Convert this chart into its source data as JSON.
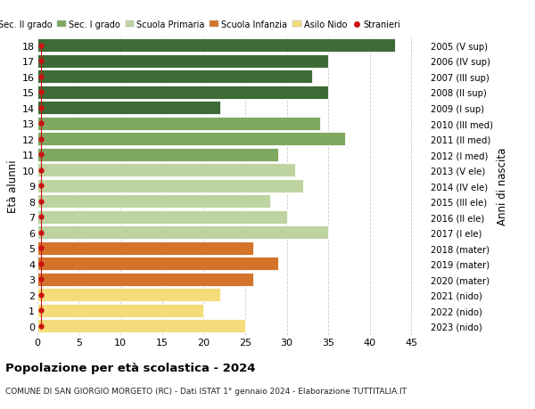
{
  "ages": [
    18,
    17,
    16,
    15,
    14,
    13,
    12,
    11,
    10,
    9,
    8,
    7,
    6,
    5,
    4,
    3,
    2,
    1,
    0
  ],
  "values": [
    43,
    35,
    33,
    35,
    22,
    34,
    37,
    29,
    31,
    32,
    28,
    30,
    35,
    26,
    29,
    26,
    22,
    20,
    25
  ],
  "right_labels": [
    "2005 (V sup)",
    "2006 (IV sup)",
    "2007 (III sup)",
    "2008 (II sup)",
    "2009 (I sup)",
    "2010 (III med)",
    "2011 (II med)",
    "2012 (I med)",
    "2013 (V ele)",
    "2014 (IV ele)",
    "2015 (III ele)",
    "2016 (II ele)",
    "2017 (I ele)",
    "2018 (mater)",
    "2019 (mater)",
    "2020 (mater)",
    "2021 (nido)",
    "2022 (nido)",
    "2023 (nido)"
  ],
  "bar_colors_by_age": {
    "18": "#3e6b35",
    "17": "#3e6b35",
    "16": "#3e6b35",
    "15": "#3e6b35",
    "14": "#3e6b35",
    "13": "#7fa860",
    "12": "#7fa860",
    "11": "#7fa860",
    "10": "#bdd4a0",
    "9": "#bdd4a0",
    "8": "#bdd4a0",
    "7": "#bdd4a0",
    "6": "#bdd4a0",
    "5": "#d4732a",
    "4": "#d4732a",
    "3": "#d4732a",
    "2": "#f5dc7a",
    "1": "#f5dc7a",
    "0": "#f5dc7a"
  },
  "title": "Popolazione per età scolastica - 2024",
  "subtitle": "COMUNE DI SAN GIORGIO MORGETO (RC) - Dati ISTAT 1° gennaio 2024 - Elaborazione TUTTITALIA.IT",
  "ylabel_left": "Età alunni",
  "ylabel_right": "Anni di nascita",
  "xlim": [
    0,
    47
  ],
  "xticks": [
    0,
    5,
    10,
    15,
    20,
    25,
    30,
    35,
    40,
    45
  ],
  "legend_labels": [
    "Sec. II grado",
    "Sec. I grado",
    "Scuola Primaria",
    "Scuola Infanzia",
    "Asilo Nido",
    "Stranieri"
  ],
  "legend_colors": [
    "#3e6b35",
    "#7fa860",
    "#bdd4a0",
    "#d4732a",
    "#f5dc7a",
    "#cc1111"
  ],
  "stranieri_color": "#cc1111",
  "bg_color": "#ffffff",
  "grid_color": "#cccccc"
}
